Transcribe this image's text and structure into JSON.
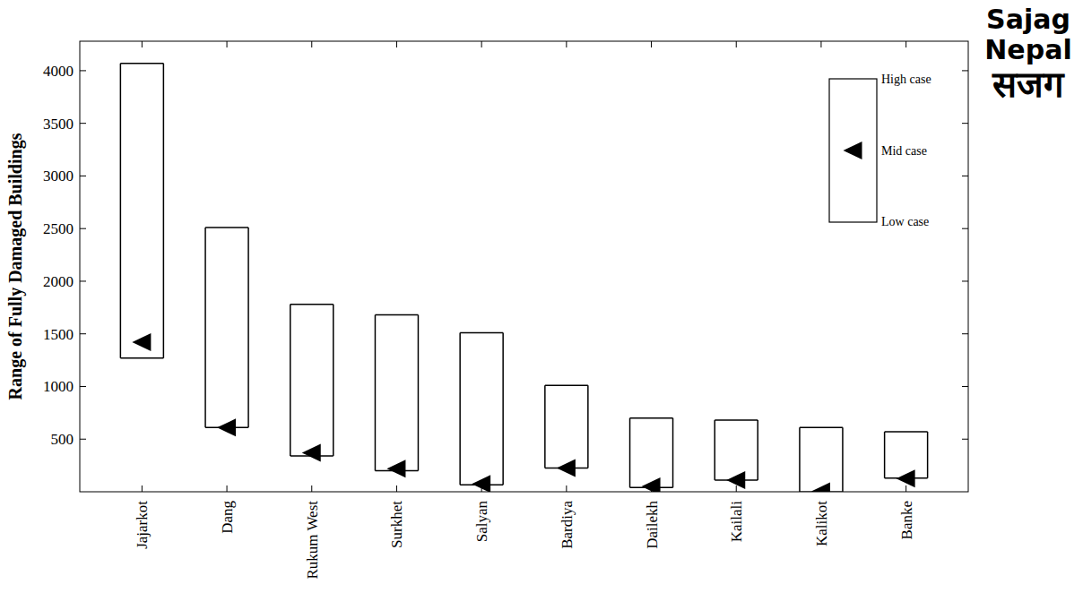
{
  "chart_data": {
    "type": "range_bar",
    "y_label": "Range of Fully Damaged Buildings",
    "categories": [
      "Jajarkot",
      "Dang",
      "Rukum West",
      "Surkhet",
      "Salyan",
      "Bardiya",
      "Dailekh",
      "Kailali",
      "Kalikot",
      "Banke"
    ],
    "series": [
      {
        "name": "High case",
        "color": "#000000",
        "values": [
          4070,
          2510,
          1780,
          1680,
          1510,
          1010,
          700,
          680,
          610,
          570
        ]
      },
      {
        "name": "Mid case",
        "color": "#000000",
        "marker": "triangle-left",
        "values": [
          1420,
          610,
          370,
          220,
          75,
          225,
          50,
          110,
          5,
          125
        ]
      },
      {
        "name": "Low case",
        "color": "#000000",
        "values": [
          1270,
          610,
          340,
          200,
          65,
          225,
          40,
          110,
          0,
          130
        ]
      }
    ],
    "ylim": [
      0,
      4280
    ],
    "yticks": [
      500,
      1000,
      1500,
      2000,
      2500,
      3000,
      3500,
      4000
    ],
    "grid": false,
    "legend": "upper right"
  },
  "logo": {
    "lines": [
      "Sajag",
      "Nepal",
      "सजग"
    ]
  }
}
